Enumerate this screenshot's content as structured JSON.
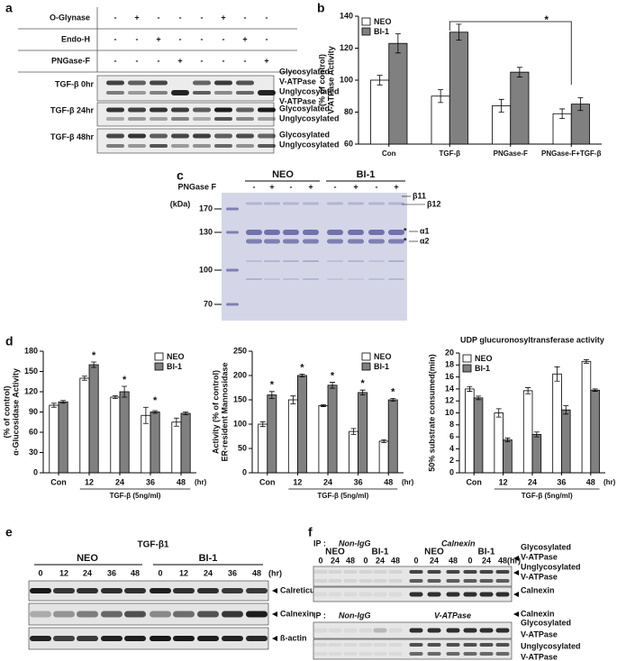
{
  "panel_labels": [
    "a",
    "b",
    "c",
    "d",
    "e",
    "f"
  ],
  "panel_a": {
    "treatments": [
      {
        "name": "O-Glynase",
        "signs": [
          "-",
          "+",
          "-",
          "-",
          "-",
          "+",
          "-",
          "-"
        ]
      },
      {
        "name": "Endo-H",
        "signs": [
          "-",
          "-",
          "+",
          "-",
          "-",
          "-",
          "+",
          "-"
        ]
      },
      {
        "name": "PNGase-F",
        "signs": [
          "-",
          "-",
          "-",
          "+",
          "-",
          "-",
          "-",
          "+"
        ]
      }
    ],
    "blots": [
      {
        "label": "TGF-β 0hr",
        "bands": [
          "Glycosylated",
          "V-ATPase",
          "Unglycosylated",
          "V-ATPase"
        ]
      },
      {
        "label": "TGF-β 24hr",
        "bands": [
          "Glycosylated",
          "Unglycosylated"
        ]
      },
      {
        "label": "TGF-β 48hr",
        "bands": [
          "Glycosylated",
          "Unglycosylated"
        ]
      }
    ]
  },
  "panel_c": {
    "groups": [
      "NEO",
      "BI-1"
    ],
    "treatment": "PNGase F",
    "signs": [
      "-",
      "+",
      "-",
      "+",
      "-",
      "+",
      "-",
      "+"
    ],
    "unit": "(kDa)",
    "markers": [
      170,
      130,
      100,
      70
    ],
    "bands": [
      "β11",
      "β12",
      "α1",
      "α2"
    ],
    "asterisk": "*"
  },
  "chart_data": [
    {
      "type": "bar",
      "y_label": [
        "V-ATPase Activity",
        "(% of control)"
      ],
      "categories": [
        "Con",
        "TGF-β",
        "PNGase-F",
        "PNGase-F+TGF-β"
      ],
      "series": [
        {
          "name": "NEO",
          "color": "#ffffff",
          "values": [
            100,
            90,
            84,
            79
          ],
          "errors": [
            3,
            4,
            4,
            3
          ]
        },
        {
          "name": "BI-1",
          "color": "#808080",
          "values": [
            123,
            130,
            105,
            85
          ],
          "errors": [
            6,
            5,
            3,
            4
          ]
        }
      ],
      "ylim": [
        60,
        140
      ],
      "yticks": [
        60,
        80,
        100,
        120,
        140
      ],
      "legend": "upper left",
      "annotation": "*"
    },
    {
      "type": "bar",
      "y_label": [
        "α-Glucosidase Activity",
        "(% of control)"
      ],
      "categories": [
        "Con",
        "12",
        "24",
        "36",
        "48"
      ],
      "x_unit": "(hr)",
      "x_label": "TGF-β (5ng/ml)",
      "series": [
        {
          "name": "NEO",
          "color": "#ffffff",
          "values": [
            100,
            140,
            112,
            85,
            75
          ],
          "errors": [
            3,
            3,
            2,
            12,
            6
          ]
        },
        {
          "name": "BI-1",
          "color": "#808080",
          "values": [
            105,
            160,
            120,
            90,
            88
          ],
          "errors": [
            2,
            4,
            8,
            2,
            2
          ]
        }
      ],
      "significance": [
        null,
        "*",
        "*",
        "*",
        null
      ],
      "ylim": [
        0,
        180
      ],
      "yticks": [
        0,
        30,
        60,
        90,
        120,
        150,
        180
      ],
      "legend": "upper right"
    },
    {
      "type": "bar",
      "y_label": [
        "ER-resident Mannosidase",
        "Activity (% of control)"
      ],
      "categories": [
        "Con",
        "12",
        "24",
        "36",
        "48"
      ],
      "x_unit": "(hr)",
      "x_label": "TGF-β (5ng/ml)",
      "series": [
        {
          "name": "NEO",
          "color": "#ffffff",
          "values": [
            100,
            150,
            138,
            85,
            65
          ],
          "errors": [
            5,
            8,
            2,
            6,
            3
          ]
        },
        {
          "name": "BI-1",
          "color": "#808080",
          "values": [
            160,
            200,
            180,
            165,
            150
          ],
          "errors": [
            7,
            3,
            6,
            5,
            3
          ]
        }
      ],
      "significance": [
        "*",
        "*",
        "*",
        "*",
        "*"
      ],
      "ylim": [
        0,
        250
      ],
      "yticks": [
        0,
        50,
        100,
        150,
        200,
        250
      ],
      "legend": "upper right"
    },
    {
      "type": "bar",
      "title": "UDP glucuronosyltransferase activity",
      "y_label": [
        "50% substrate consumed(min)"
      ],
      "categories": [
        "Con",
        "12",
        "24",
        "36",
        "48"
      ],
      "x_unit": "(hr)",
      "x_label": "TGF-β (5ng/ml)",
      "series": [
        {
          "name": "NEO",
          "color": "#ffffff",
          "values": [
            14,
            10,
            13.7,
            16.5,
            18.6
          ],
          "errors": [
            0.4,
            0.7,
            0.5,
            1.2,
            0.3
          ]
        },
        {
          "name": "BI-1",
          "color": "#808080",
          "values": [
            12.5,
            5.5,
            6.4,
            10.5,
            13.8
          ],
          "errors": [
            0.3,
            0.3,
            0.4,
            0.7,
            0.2
          ]
        }
      ],
      "ylim": [
        0,
        20
      ],
      "yticks": [
        0,
        2,
        4,
        6,
        8,
        10,
        12,
        14,
        16,
        18,
        20
      ],
      "legend": "upper left"
    }
  ],
  "panel_e": {
    "title": "TGF-β1",
    "groups": [
      "NEO",
      "BI-1"
    ],
    "lanes": [
      "0",
      "12",
      "24",
      "36",
      "48"
    ],
    "unit": "(hr)",
    "bands": [
      "Calreticulin",
      "Calnexin",
      "ß-actin"
    ]
  },
  "panel_f": {
    "ip_label": "IP :",
    "groups": [
      "NEO",
      "BI-1",
      "NEO",
      "BI-1"
    ],
    "lanes": [
      "0",
      "24",
      "48"
    ],
    "unit": "(hr)",
    "upper": {
      "antibodies": [
        "Non-IgG",
        "Calnexin"
      ],
      "labels": [
        "Glycosylated",
        "V-ATPase",
        "Unglycosylated",
        "V-ATPase",
        "Calnexin"
      ]
    },
    "lower": {
      "antibodies": [
        "Non-IgG",
        "V-ATPase"
      ],
      "labels": [
        "Calnexin",
        "Glycosylated",
        "V-ATPase",
        "Unglycosylated",
        "V-ATPase"
      ]
    }
  }
}
